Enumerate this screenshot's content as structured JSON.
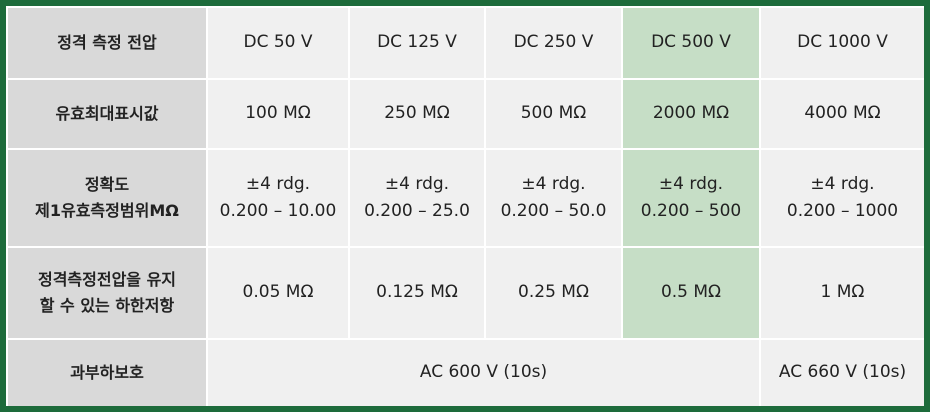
{
  "table": {
    "rows": [
      [
        "정격 측정 전압",
        "DC 50 V",
        "DC 125 V",
        "DC 250 V",
        "DC 500 V",
        "DC 1000 V"
      ],
      [
        "유효최대표시값",
        "100 MΩ",
        "250 MΩ",
        "500 MΩ",
        "2000 MΩ",
        "4000 MΩ"
      ],
      [
        [
          "정확도",
          "제1유효측정범위MΩ"
        ],
        [
          "±4 rdg.",
          "0.200 – 10.00"
        ],
        [
          "±4 rdg.",
          "0.200 – 25.0"
        ],
        [
          "±4 rdg.",
          "0.200 – 50.0"
        ],
        [
          "±4 rdg.",
          "0.200 – 500"
        ],
        [
          "±4 rdg.",
          "0.200 – 1000"
        ]
      ],
      [
        [
          "정격측정전압을 유지",
          "할 수 있는 하한저항"
        ],
        "0.05 MΩ",
        "0.125 MΩ",
        "0.25 MΩ",
        "0.5 MΩ",
        "1 MΩ"
      ],
      [
        "과부하보호",
        "AC 600 V (10s)",
        "AC 660 V (10s)"
      ]
    ]
  }
}
